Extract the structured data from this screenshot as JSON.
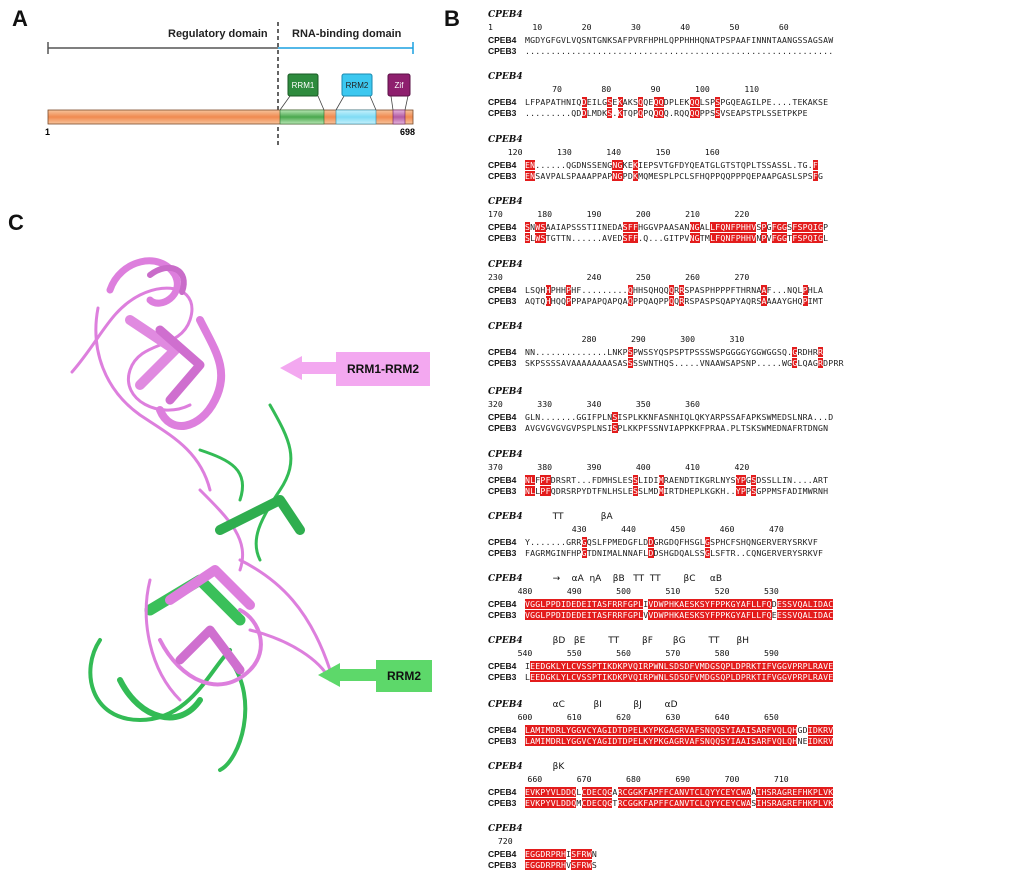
{
  "panel_labels": {
    "a": "A",
    "b": "B",
    "c": "C"
  },
  "panelA": {
    "regulatory_label": "Regulatory domain",
    "rna_binding_label": "RNA-binding domain",
    "rrm1": "RRM1",
    "rrm2": "RRM2",
    "zif": "Zif",
    "start": "1",
    "end": "698",
    "colors": {
      "body": "#f0a070",
      "rrm1": "#2e8b3e",
      "rrm2": "#3cc8f0",
      "zif": "#8e1f6e",
      "regbar": "#555555",
      "rnabar": "#1aa0e0"
    }
  },
  "panelC": {
    "callout_top": "RRM1-RRM2",
    "callout_bottom": "RRM2",
    "colors": {
      "pink": "#dd7fdd",
      "green": "#33bb55",
      "pink_box": "#f3a8f0",
      "green_box": "#5dd86a"
    }
  },
  "alignment": {
    "header": "CPEB4",
    "names": [
      "CPEB4",
      "CPEB3"
    ],
    "blocks": [
      {
        "ruler": "1        10        20        30        40        50        60",
        "seqs": [
          "MGDYGFGVLVQSNTGNKSAFPVRFHPHLQPPHHHQNATPSPAAFINNNTAANGSSAGSAW",
          "............................................................"
        ]
      },
      {
        "ruler": "             70        80        90       100       110",
        "seqs": [
          "LFPAPATHNIQDEILGSEKAKSQQEQQDPLEKQQLSPSPGQEAGILPE....TEKAKSE",
          ".........QDDLMDKS.KTQPQPQQQQ.RQQQQPPSSVSEAPSTPLSSETPKPE"
        ]
      },
      {
        "ruler": "    120       130       140       150       160",
        "seqs": [
          "EN......QGDNSSENGNGKEKIEPSVTGFDYQEATGLGTSTQPLTSSASSL.TG.F",
          "ENSAVPALSPAAAPPAPNGPDKMQMESPLPCLSFHQPPQQPPPQEPAAPGASLSPSFG"
        ]
      },
      {
        "ruler": "170       180       190       200       210       220",
        "seqs": [
          "SNWSAAIAPSSSTIINEDASFFHGGVPAASANNGALLFQNFPHHVSPGFGGSFSPQIGP",
          "SLWSTGTTN......AVEDSFF.Q...GITPVNGTMLFQNFPHHVNPVFGGTFSPQIGL"
        ]
      },
      {
        "ruler": "230                 240       250       260       270",
        "seqs": [
          "LSQHHPHHPHF.........QHHSQHQQQRRSPASPHPPPFTHRNAAF...NQLPHLA",
          "AQTQHHQQPPPAPAPQAPQAQPPQAQPPQQRRSPASPSQAPYAQRSAAAAYGHQPIMT"
        ]
      },
      {
        "ruler": "                   280       290       300       310",
        "seqs": [
          "NN..............LNKPSPWSSYQSPSPTPSSSWSPGGGGYGGWGGSQ.GRDHRR",
          "SKPSSSSAVAAAAAAAASASSSSWNTHQS.....VNAAWSAPSNP.....WGGLQAGRDPRR"
        ]
      },
      {
        "ruler": "320       330       340       350       360",
        "seqs": [
          "GLN.......GGIFPLNSISPLKKNFASNHIQLQKYARPSSAFAPKSWMEDSLNRA...D",
          "AVGVGVGVGVPSPLNSISPLKKPFSSNVIAPPKKFPRAA.PLTSKSWMEDNAFRTDNGN"
        ]
      },
      {
        "ruler": "370       380       390       400       410       420",
        "seqs": [
          "NLFPFDRSRT...FDMHSLESSLIDIMRAENDTIKGRLNYSYPGSDSSLLIN....ART",
          "NLLPFQDRSRPYDTFNLHSLESSLMDMIRTDHEPLKGKH..YPPSGPPMSFADIMWRNH"
        ]
      },
      {
        "ruler": "                 430       440       450       460       470",
        "seqs": [
          "Y.......GRRGQSLFPMEDGFLDDGRGDQFHSGLGSPHCFSHQNGERVERYSRKVF",
          "FAGRMGINFHPGTDNIMALNNAFLDDSHGDQALSSGLSFTR..CQNGERVERYSRKVF"
        ]
      },
      {
        "ruler": "      480       490       500       510       520       530",
        "seqs": [
          "VGGLPPDIDEDEITASFRRFGPLIVDWPHKAESKSYFPPKGYAFLLFQDESSVQALIDAC",
          "VGGLPPDIDEDEITASFRRFGPLVVDWPHKAESKSYFPPKGYAFLLFQEESSVQALIDAC"
        ]
      },
      {
        "ruler": "      540       550       560       570       580       590",
        "seqs": [
          "IEEDGKLYLCVSSPTIKDKPVQIRPWNLSDSDFVMDGSQPLDPRKTIFVGGVPRPLRAVE",
          "LEEDGKLYLCVSSPTIKDKPVQIRPWNLSDSDFVMDGSQPLDPRKTIFVGGVPRPLRAVE"
        ]
      },
      {
        "ruler": "      600       610       620       630       640       650",
        "seqs": [
          "LAMIMDRLYGGVCYAGIDTDPELKYPKGAGRVAFSNQQSYIAAISARFVQLQHGDIDKRV",
          "LAMIMDRLYGGVCYAGIDTDPELKYPKGAGRVAFSNQQSYIAAISARFVQLQHNEIDKRV"
        ]
      },
      {
        "ruler": "        660       670       680       690       700       710",
        "seqs": [
          "EVKPYVLDDQLCDECQGARCGGKFAPFFCANVTCLQYYCEYCWAAIHSRAGREFHKPLVK",
          "EVKPYVLDDQMCDECQGTRCGGKFAPFFCANVTCLQYYCEYCWASIHSRAGREFHKPLVK"
        ]
      },
      {
        "ruler": "  720",
        "seqs": [
          "EGGDRPRHISFRWN",
          "EGGDRPRHVSFRWS"
        ]
      }
    ],
    "secondary": [
      {
        "block": 8,
        "text": "TT             βA"
      },
      {
        "block": 9,
        "text": "→    αA  ηA    βB   TT  TT        βC     αB"
      },
      {
        "block": 10,
        "text": "βD   βE        TT        βF       βG        TT      βH"
      },
      {
        "block": 11,
        "text": "αC          βI           βJ        αD"
      },
      {
        "block": 12,
        "text": "βK"
      }
    ],
    "colors": {
      "conserved": "#e31c1c",
      "similar_box": "#3a3af0"
    }
  }
}
